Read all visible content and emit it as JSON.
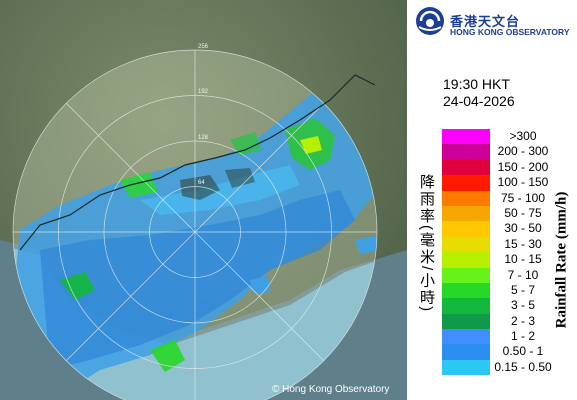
{
  "map": {
    "copyright": "© Hong Kong Observatory",
    "range_rings_km": [
      "64",
      "128",
      "192",
      "256"
    ],
    "colors": {
      "land": "#5d6f52",
      "sea_in_range": "#8fc1cf",
      "rain_light": "#3fa0e6",
      "rain_moderate": "#2ec04a"
    }
  },
  "logo": {
    "zh": "香港天文台",
    "en": "HONG KONG OBSERVATORY",
    "icon": "hko-logo-icon",
    "color": "#1d3f93"
  },
  "timestamp": {
    "time": "19:30 HKT",
    "date": "24-04-2026"
  },
  "legend": {
    "title_zh": "降雨率(毫米/小時)",
    "title_en": "Rainfall Rate (mm/h)",
    "items": [
      {
        "label": ">300",
        "color": "#ff00ff"
      },
      {
        "label": "200 - 300",
        "color": "#cc0099"
      },
      {
        "label": "150 - 200",
        "color": "#e0003c"
      },
      {
        "label": "100 - 150",
        "color": "#ff1a00"
      },
      {
        "label": "75 - 100",
        "color": "#ff7a00"
      },
      {
        "label": "50 - 75",
        "color": "#f7a600"
      },
      {
        "label": "30 - 50",
        "color": "#ffc800"
      },
      {
        "label": "15 - 30",
        "color": "#e6dc00"
      },
      {
        "label": "10 - 15",
        "color": "#b6f000"
      },
      {
        "label": "7 - 10",
        "color": "#66f21a"
      },
      {
        "label": "5 - 7",
        "color": "#28d828"
      },
      {
        "label": "3 - 5",
        "color": "#12b83c"
      },
      {
        "label": "2 - 3",
        "color": "#0f9a4a"
      },
      {
        "label": "1 - 2",
        "color": "#3f8fff"
      },
      {
        "label": "0.50 - 1",
        "color": "#2a8ef0"
      },
      {
        "label": "0.15 - 0.50",
        "color": "#2cc8f5"
      }
    ]
  }
}
